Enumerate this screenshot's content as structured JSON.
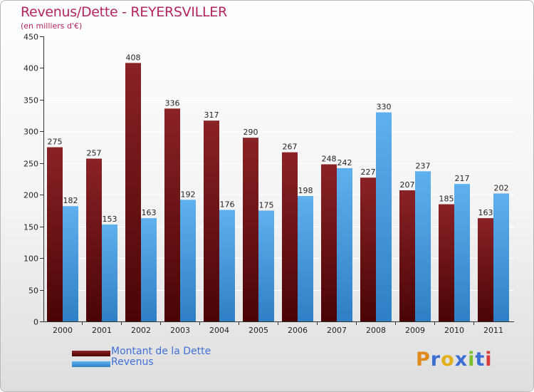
{
  "title": "Revenus/Dette - REYERSVILLER",
  "subtitle": "(en milliers d'€)",
  "chart_data": {
    "type": "bar",
    "categories": [
      "2000",
      "2001",
      "2002",
      "2003",
      "2004",
      "2005",
      "2006",
      "2007",
      "2008",
      "2009",
      "2010",
      "2011"
    ],
    "series": [
      {
        "name": "Montant de la Dette",
        "color": "#7a1518",
        "values": [
          275,
          257,
          408,
          336,
          317,
          290,
          267,
          248,
          227,
          207,
          185,
          163
        ]
      },
      {
        "name": "Revenus",
        "color": "#4a9fe0",
        "values": [
          182,
          153,
          163,
          192,
          176,
          175,
          198,
          242,
          330,
          237,
          217,
          202
        ]
      }
    ],
    "ylim": [
      0,
      450
    ],
    "yticks": [
      0,
      50,
      100,
      150,
      200,
      250,
      300,
      350,
      400,
      450
    ],
    "grid": true
  },
  "legend": {
    "debt_label": "Montant de la Dette",
    "revenue_label": "Revenus"
  },
  "brand": {
    "letters": [
      "P",
      "r",
      "o",
      "x",
      "i",
      "t",
      "i"
    ],
    "colors": [
      "#e08a1c",
      "#3b6fd4",
      "#e3b01c",
      "#3b6fd4",
      "#7abf2a",
      "#3b6fd4",
      "#d83a3a"
    ]
  }
}
